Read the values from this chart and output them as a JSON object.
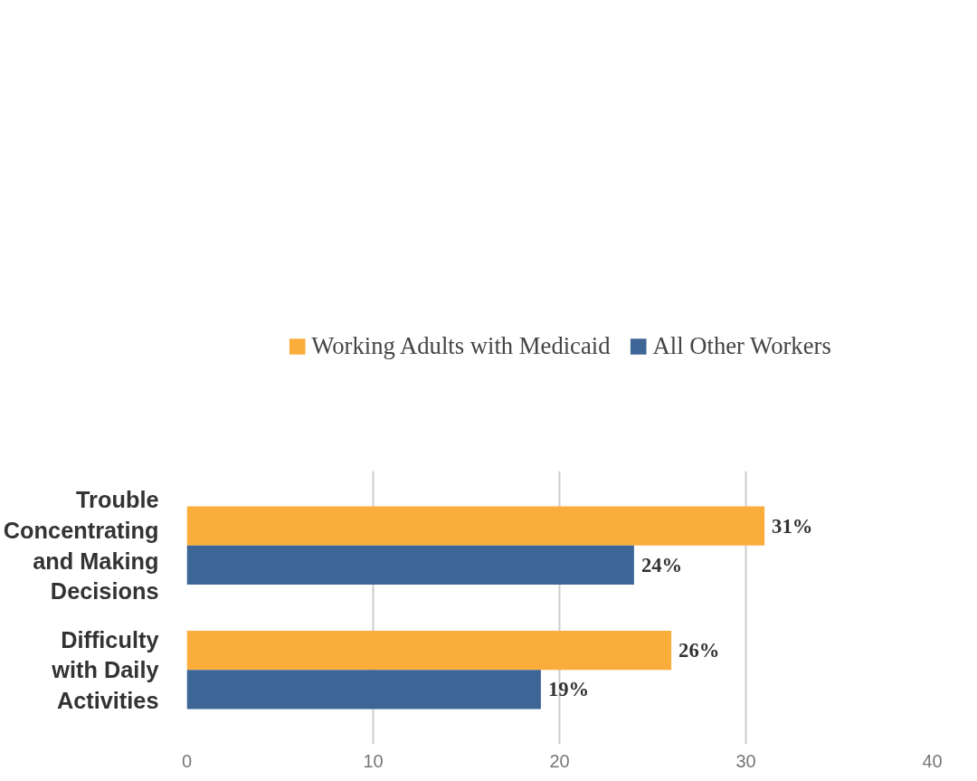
{
  "chart_data": {
    "type": "bar",
    "orientation": "horizontal",
    "categories": [
      "Trouble Concentrating and Making Decisions",
      "Difficulty with Daily Activities"
    ],
    "series": [
      {
        "name": "Working Adults with Medicaid",
        "color": "#fbad3c",
        "values": [
          31,
          26
        ],
        "value_labels": [
          "31%",
          "26%"
        ]
      },
      {
        "name": "All Other Workers",
        "color": "#3d6697",
        "values": [
          24,
          19
        ],
        "value_labels": [
          "24%",
          "19%"
        ]
      }
    ],
    "xlim": [
      0,
      40
    ],
    "xticks": [
      0,
      10,
      20,
      30,
      40
    ],
    "grid": "x",
    "legend": "top"
  }
}
